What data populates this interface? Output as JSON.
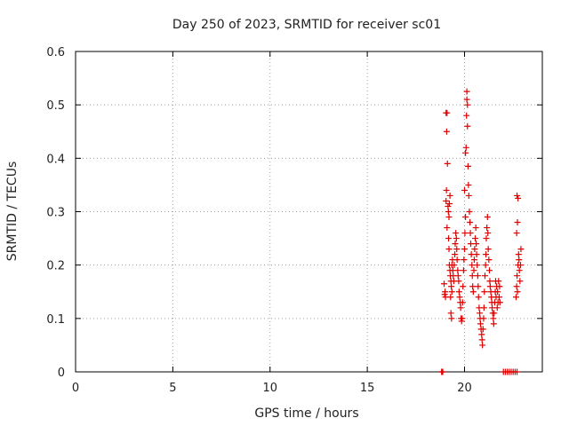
{
  "chart_data": {
    "type": "scatter",
    "title": "Day 250 of 2023, SRMTID for receiver sc01",
    "xlabel": "GPS time / hours",
    "ylabel": "SRMTID / TECUs",
    "xlim": [
      0,
      24
    ],
    "ylim": [
      0,
      0.6
    ],
    "grid": true,
    "marker": "+",
    "colors": {
      "series": "#e00000",
      "axis": "#000000",
      "grid": "#a0a0a0",
      "text": "#222222"
    },
    "x_ticks": [
      0,
      5,
      10,
      15,
      20
    ],
    "x_tick_labels": [
      "0",
      "5",
      "10",
      "15",
      "20"
    ],
    "y_ticks": [
      0,
      0.1,
      0.2,
      0.3,
      0.4,
      0.5,
      0.6
    ],
    "y_tick_labels": [
      "0",
      "0.1",
      "0.2",
      "0.3",
      "0.4",
      "0.5",
      "0.6"
    ],
    "series": [
      {
        "name": "sc01",
        "points": [
          [
            18.82,
            0
          ],
          [
            18.85,
            0
          ],
          [
            18.88,
            0
          ],
          [
            22.0,
            0
          ],
          [
            22.1,
            0
          ],
          [
            22.2,
            0
          ],
          [
            22.3,
            0
          ],
          [
            22.4,
            0
          ],
          [
            22.5,
            0
          ],
          [
            22.6,
            0
          ],
          [
            22.7,
            0
          ],
          [
            18.95,
            0.165
          ],
          [
            18.98,
            0.145
          ],
          [
            19.0,
            0.15
          ],
          [
            19.02,
            0.14
          ],
          [
            19.05,
            0.32
          ],
          [
            19.07,
            0.34
          ],
          [
            19.05,
            0.485
          ],
          [
            19.1,
            0.485
          ],
          [
            19.08,
            0.45
          ],
          [
            19.12,
            0.39
          ],
          [
            19.1,
            0.27
          ],
          [
            19.15,
            0.31
          ],
          [
            19.17,
            0.3
          ],
          [
            19.2,
            0.29
          ],
          [
            19.22,
            0.315
          ],
          [
            19.25,
            0.33
          ],
          [
            19.18,
            0.25
          ],
          [
            19.2,
            0.23
          ],
          [
            19.22,
            0.2
          ],
          [
            19.25,
            0.19
          ],
          [
            19.27,
            0.18
          ],
          [
            19.3,
            0.17
          ],
          [
            19.32,
            0.16
          ],
          [
            19.35,
            0.15
          ],
          [
            19.28,
            0.14
          ],
          [
            19.3,
            0.11
          ],
          [
            19.33,
            0.1
          ],
          [
            19.35,
            0.2
          ],
          [
            19.38,
            0.21
          ],
          [
            19.4,
            0.19
          ],
          [
            19.42,
            0.18
          ],
          [
            19.45,
            0.17
          ],
          [
            19.47,
            0.2
          ],
          [
            19.5,
            0.22
          ],
          [
            19.52,
            0.24
          ],
          [
            19.55,
            0.26
          ],
          [
            19.58,
            0.25
          ],
          [
            19.6,
            0.23
          ],
          [
            19.62,
            0.21
          ],
          [
            19.65,
            0.19
          ],
          [
            19.67,
            0.18
          ],
          [
            19.7,
            0.17
          ],
          [
            19.72,
            0.15
          ],
          [
            19.75,
            0.14
          ],
          [
            19.78,
            0.13
          ],
          [
            19.8,
            0.12
          ],
          [
            19.82,
            0.1
          ],
          [
            19.85,
            0.095
          ],
          [
            19.88,
            0.1
          ],
          [
            19.9,
            0.13
          ],
          [
            19.92,
            0.16
          ],
          [
            19.95,
            0.19
          ],
          [
            19.97,
            0.21
          ],
          [
            20.0,
            0.23
          ],
          [
            20.02,
            0.26
          ],
          [
            20.05,
            0.29
          ],
          [
            20.0,
            0.34
          ],
          [
            20.05,
            0.41
          ],
          [
            20.08,
            0.42
          ],
          [
            20.1,
            0.48
          ],
          [
            20.12,
            0.51
          ],
          [
            20.12,
            0.525
          ],
          [
            20.15,
            0.5
          ],
          [
            20.15,
            0.46
          ],
          [
            20.18,
            0.385
          ],
          [
            20.2,
            0.35
          ],
          [
            20.22,
            0.33
          ],
          [
            20.25,
            0.3
          ],
          [
            20.28,
            0.28
          ],
          [
            20.3,
            0.26
          ],
          [
            20.32,
            0.24
          ],
          [
            20.35,
            0.22
          ],
          [
            20.38,
            0.2
          ],
          [
            20.4,
            0.18
          ],
          [
            20.42,
            0.16
          ],
          [
            20.45,
            0.15
          ],
          [
            20.48,
            0.19
          ],
          [
            20.5,
            0.21
          ],
          [
            20.52,
            0.23
          ],
          [
            20.55,
            0.25
          ],
          [
            20.58,
            0.27
          ],
          [
            20.6,
            0.24
          ],
          [
            20.62,
            0.22
          ],
          [
            20.65,
            0.2
          ],
          [
            20.68,
            0.18
          ],
          [
            20.7,
            0.16
          ],
          [
            20.72,
            0.14
          ],
          [
            20.75,
            0.12
          ],
          [
            20.78,
            0.11
          ],
          [
            20.8,
            0.1
          ],
          [
            20.82,
            0.09
          ],
          [
            20.85,
            0.08
          ],
          [
            20.88,
            0.07
          ],
          [
            20.9,
            0.06
          ],
          [
            20.92,
            0.05
          ],
          [
            20.95,
            0.08
          ],
          [
            20.98,
            0.1
          ],
          [
            21.0,
            0.12
          ],
          [
            21.02,
            0.15
          ],
          [
            21.05,
            0.18
          ],
          [
            21.08,
            0.2
          ],
          [
            21.1,
            0.22
          ],
          [
            21.12,
            0.25
          ],
          [
            21.15,
            0.27
          ],
          [
            21.18,
            0.29
          ],
          [
            21.2,
            0.26
          ],
          [
            21.22,
            0.23
          ],
          [
            21.25,
            0.21
          ],
          [
            21.28,
            0.19
          ],
          [
            21.3,
            0.17
          ],
          [
            21.32,
            0.16
          ],
          [
            21.35,
            0.15
          ],
          [
            21.38,
            0.14
          ],
          [
            21.4,
            0.13
          ],
          [
            21.42,
            0.12
          ],
          [
            21.45,
            0.11
          ],
          [
            21.48,
            0.1
          ],
          [
            21.5,
            0.09
          ],
          [
            21.52,
            0.11
          ],
          [
            21.55,
            0.13
          ],
          [
            21.58,
            0.15
          ],
          [
            21.6,
            0.17
          ],
          [
            21.62,
            0.14
          ],
          [
            21.65,
            0.16
          ],
          [
            21.68,
            0.12
          ],
          [
            21.7,
            0.15
          ],
          [
            21.72,
            0.13
          ],
          [
            21.75,
            0.17
          ],
          [
            21.78,
            0.14
          ],
          [
            21.8,
            0.16
          ],
          [
            21.82,
            0.13
          ],
          [
            22.65,
            0.14
          ],
          [
            22.68,
            0.16
          ],
          [
            22.7,
            0.18
          ],
          [
            22.72,
            0.15
          ],
          [
            22.75,
            0.2
          ],
          [
            22.78,
            0.22
          ],
          [
            22.8,
            0.21
          ],
          [
            22.82,
            0.19
          ],
          [
            22.68,
            0.26
          ],
          [
            22.72,
            0.28
          ],
          [
            22.75,
            0.325
          ],
          [
            22.7,
            0.33
          ],
          [
            22.85,
            0.17
          ],
          [
            22.88,
            0.2
          ],
          [
            22.9,
            0.23
          ]
        ]
      }
    ]
  }
}
